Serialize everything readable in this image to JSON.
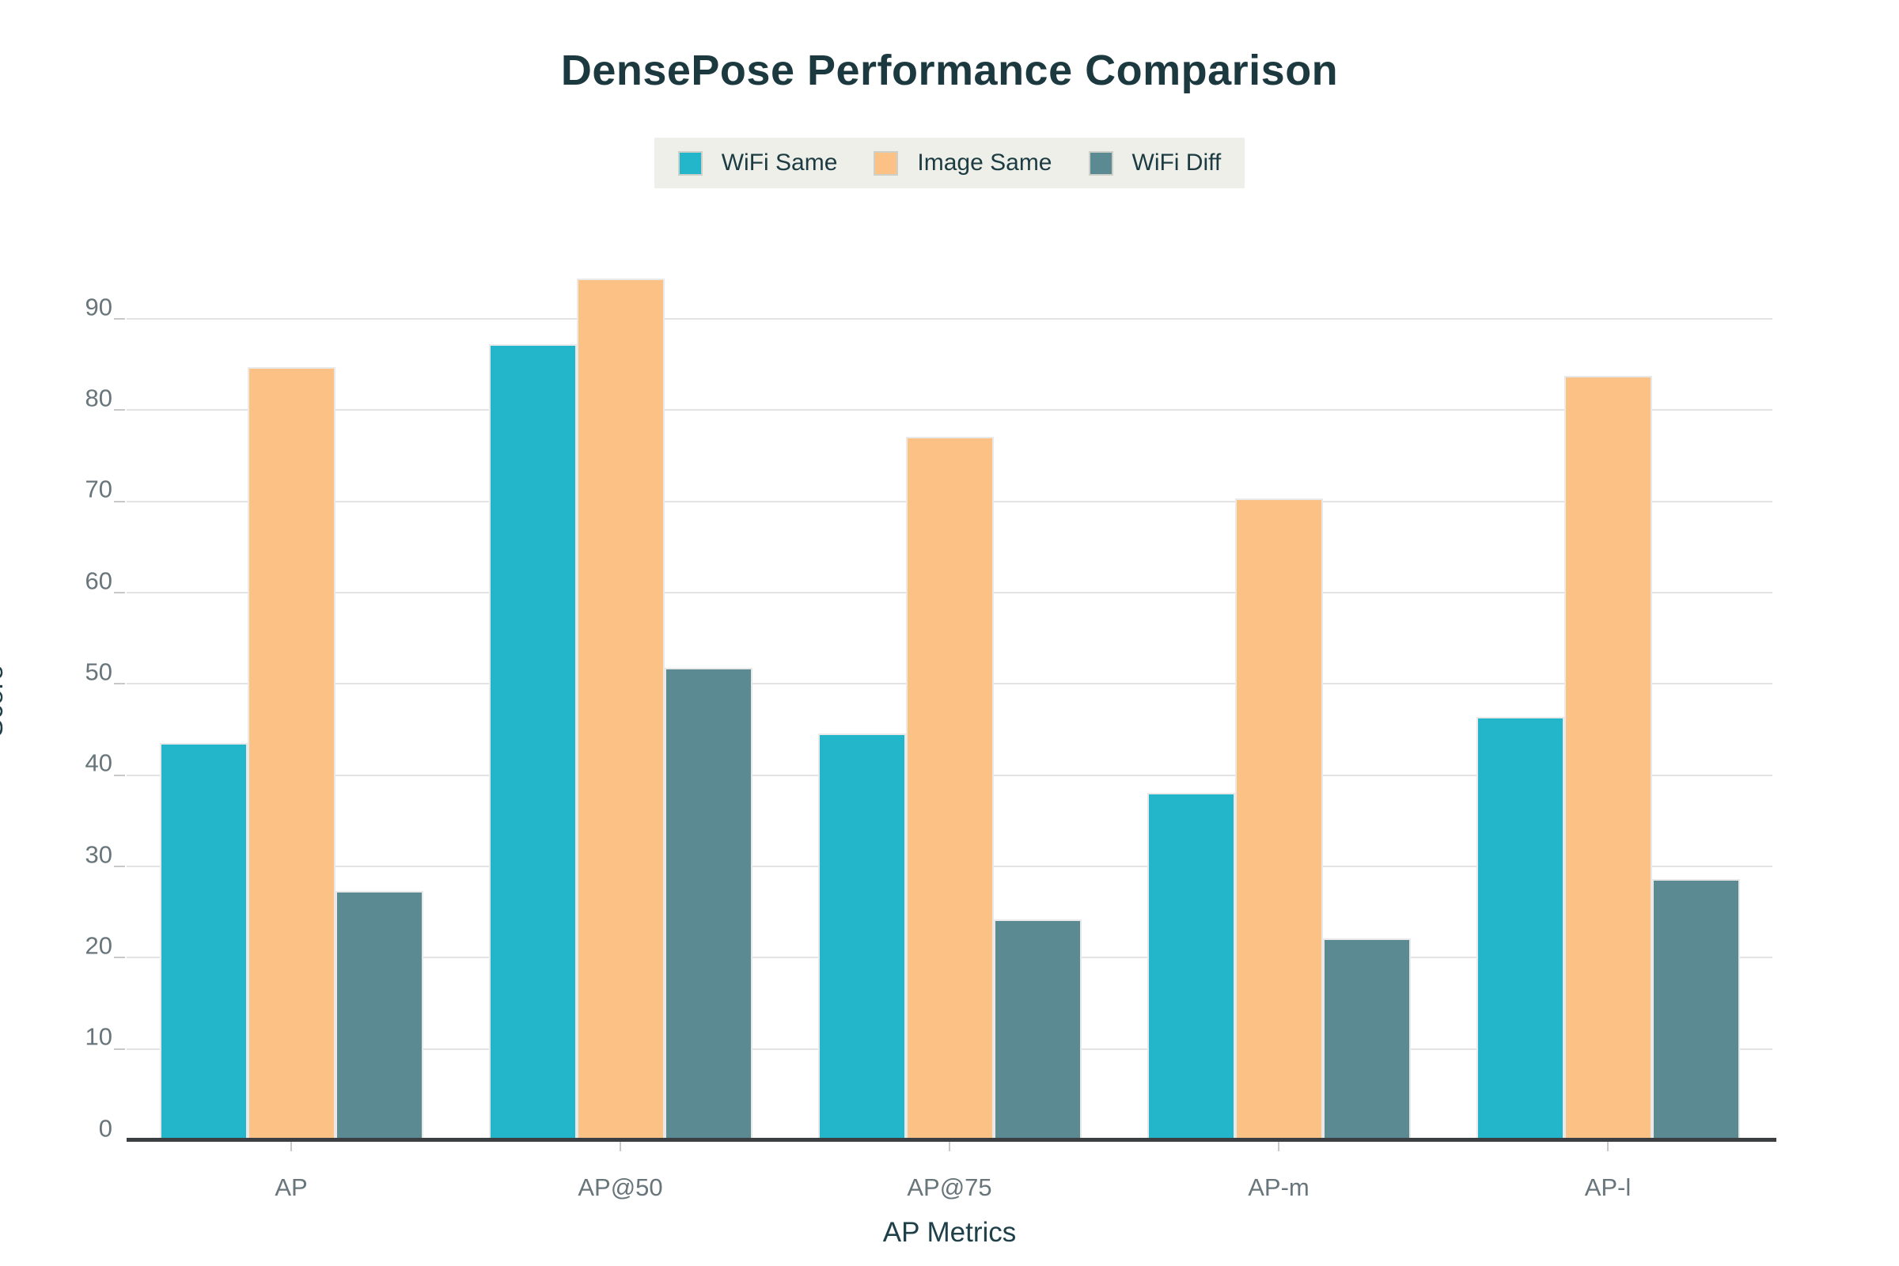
{
  "figure": {
    "title": "DensePose Performance Comparison"
  },
  "legend": {
    "background_color": "#edefe8",
    "position": "top-center"
  },
  "chart_data": {
    "type": "bar",
    "title": "DensePose Performance Comparison",
    "xlabel": "AP Metrics",
    "ylabel": "Score",
    "categories": [
      "AP",
      "AP@50",
      "AP@75",
      "AP-m",
      "AP-l"
    ],
    "series": [
      {
        "name": "WiFi Same",
        "color": "#23b6ca",
        "values": [
          43.5,
          87.2,
          44.6,
          38.1,
          46.4
        ]
      },
      {
        "name": "Image Same",
        "color": "#fcc184",
        "values": [
          84.7,
          94.4,
          77.1,
          70.3,
          83.8
        ]
      },
      {
        "name": "WiFi Diff",
        "color": "#5c8a93",
        "values": [
          27.3,
          51.8,
          24.2,
          22.1,
          28.6
        ]
      }
    ],
    "yticks": [
      0,
      10,
      20,
      30,
      40,
      50,
      60,
      70,
      80,
      90
    ],
    "ylim": [
      0,
      96.2
    ],
    "grid": true,
    "legend_entries": [
      "WiFi Same",
      "Image Same",
      "WiFi Diff"
    ],
    "colors": {
      "title_text": "#1c3940",
      "axis_title_text": "#1f4048",
      "tick_text": "#68757b",
      "gridline": "#e3e3e3",
      "axis_line": "#3b3f42",
      "legend_background": "#edefe8"
    }
  }
}
